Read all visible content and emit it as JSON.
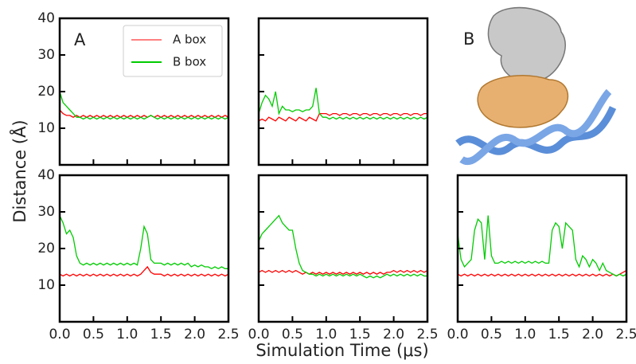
{
  "ylabel": "Distance (Å)",
  "xlabel": "Simulation Time (μs)",
  "image_label": "B",
  "chart_data": [
    {
      "type": "line",
      "annotation": "A",
      "legend": "upper right",
      "show_xticklabels": false,
      "show_yticklabels": true,
      "xlim": [
        0,
        2.5
      ],
      "ylim": [
        0,
        40
      ],
      "xticks": [
        0,
        0.5,
        1,
        1.5,
        2,
        2.5
      ],
      "yticks": [
        10,
        20,
        30,
        40
      ],
      "x": [
        0,
        0.05,
        0.1,
        0.15,
        0.2,
        0.25,
        0.3,
        0.35,
        0.4,
        0.45,
        0.5,
        0.55,
        0.6,
        0.65,
        0.7,
        0.75,
        0.8,
        0.85,
        0.9,
        0.95,
        1,
        1.05,
        1.1,
        1.15,
        1.2,
        1.25,
        1.3,
        1.35,
        1.4,
        1.45,
        1.5,
        1.55,
        1.6,
        1.65,
        1.7,
        1.75,
        1.8,
        1.85,
        1.9,
        1.95,
        2,
        2.05,
        2.1,
        2.15,
        2.2,
        2.25,
        2.3,
        2.35,
        2.4,
        2.45,
        2.5
      ],
      "series": [
        {
          "name": "A box",
          "color": "#ff0000",
          "values": [
            15,
            14,
            13.5,
            13.5,
            13,
            13.5,
            13,
            13.5,
            13,
            13.5,
            13,
            13.5,
            13,
            13.5,
            13,
            13.5,
            13,
            13.5,
            13,
            13.5,
            13,
            13.5,
            13,
            13.5,
            13,
            13.5,
            13,
            13.5,
            13,
            13.5,
            13,
            13.5,
            13,
            13.5,
            13,
            13.5,
            13,
            13.5,
            13,
            13.5,
            13,
            13.5,
            13,
            13.5,
            13,
            13.5,
            13,
            13.5,
            13,
            13.5,
            13
          ]
        },
        {
          "name": "B box",
          "color": "#00cc00",
          "values": [
            20,
            17,
            16,
            15,
            14,
            13,
            13,
            12.5,
            13,
            12.5,
            13,
            12.5,
            13,
            12.5,
            13,
            12.5,
            13,
            12.5,
            13,
            12.5,
            13,
            12.5,
            13,
            12.5,
            13,
            12.5,
            13,
            13.5,
            13,
            12.5,
            13,
            12.5,
            13,
            12.5,
            13,
            12.5,
            13,
            12.5,
            13,
            12.5,
            13,
            12.5,
            13,
            12.5,
            13,
            12.5,
            13,
            12.5,
            13,
            12.5,
            13
          ]
        }
      ]
    },
    {
      "type": "line",
      "show_xticklabels": false,
      "show_yticklabels": false,
      "xlim": [
        0,
        2.5
      ],
      "ylim": [
        0,
        40
      ],
      "xticks": [
        0,
        0.5,
        1,
        1.5,
        2,
        2.5
      ],
      "yticks": [
        10,
        20,
        30,
        40
      ],
      "x": [
        0,
        0.05,
        0.1,
        0.15,
        0.2,
        0.25,
        0.3,
        0.35,
        0.4,
        0.45,
        0.5,
        0.55,
        0.6,
        0.65,
        0.7,
        0.75,
        0.8,
        0.85,
        0.9,
        0.95,
        1,
        1.05,
        1.1,
        1.15,
        1.2,
        1.25,
        1.3,
        1.35,
        1.4,
        1.45,
        1.5,
        1.55,
        1.6,
        1.65,
        1.7,
        1.75,
        1.8,
        1.85,
        1.9,
        1.95,
        2,
        2.05,
        2.1,
        2.15,
        2.2,
        2.25,
        2.3,
        2.35,
        2.4,
        2.45,
        2.5
      ],
      "series": [
        {
          "color": "#ff0000",
          "values": [
            12,
            12.5,
            12,
            13,
            12.5,
            12,
            13,
            12.5,
            12,
            13,
            12.5,
            12,
            13,
            12.5,
            12,
            13,
            12.5,
            12,
            14,
            14,
            14,
            13.5,
            14,
            14,
            13.5,
            14,
            14,
            13.5,
            14,
            14,
            13.5,
            14,
            14,
            13.5,
            14,
            14,
            13.5,
            14,
            14,
            13.5,
            14,
            14,
            13.5,
            14,
            14,
            13.5,
            14,
            14,
            13.5,
            14,
            14
          ]
        },
        {
          "color": "#00cc00",
          "values": [
            14,
            17,
            19,
            18,
            16,
            20,
            14,
            16,
            15,
            15,
            14.5,
            15,
            15,
            14.5,
            15,
            15,
            16,
            21,
            14,
            13,
            13,
            12.5,
            13,
            12.5,
            13,
            12.5,
            13,
            12.5,
            13,
            12.5,
            13,
            12.5,
            13,
            12.5,
            13,
            12.5,
            13,
            12.5,
            13,
            12.5,
            13,
            12.5,
            13,
            12.5,
            13,
            12.5,
            13,
            12.5,
            13,
            12.5,
            13
          ]
        }
      ]
    },
    {
      "type": "line",
      "show_xticklabels": true,
      "show_yticklabels": true,
      "xlim": [
        0,
        2.5
      ],
      "ylim": [
        0,
        40
      ],
      "xticks": [
        {
          "value": 0,
          "label": "0.0"
        },
        0.5,
        {
          "value": 1,
          "label": "1.0"
        },
        1.5,
        {
          "value": 2,
          "label": "2.0"
        },
        2.5
      ],
      "yticks": [
        10,
        20,
        30,
        40
      ],
      "x": [
        0,
        0.05,
        0.1,
        0.15,
        0.2,
        0.25,
        0.3,
        0.35,
        0.4,
        0.45,
        0.5,
        0.55,
        0.6,
        0.65,
        0.7,
        0.75,
        0.8,
        0.85,
        0.9,
        0.95,
        1,
        1.05,
        1.1,
        1.15,
        1.2,
        1.25,
        1.3,
        1.35,
        1.4,
        1.45,
        1.5,
        1.55,
        1.6,
        1.65,
        1.7,
        1.75,
        1.8,
        1.85,
        1.9,
        1.95,
        2,
        2.05,
        2.1,
        2.15,
        2.2,
        2.25,
        2.3,
        2.35,
        2.4,
        2.45,
        2.5
      ],
      "series": [
        {
          "color": "#ff0000",
          "values": [
            13,
            12.5,
            13,
            12.5,
            13,
            12.5,
            13,
            12.5,
            13,
            12.5,
            13,
            12.5,
            13,
            12.5,
            13,
            12.5,
            13,
            12.5,
            13,
            12.5,
            13,
            12.5,
            13,
            12.5,
            13,
            14,
            15,
            13.5,
            13,
            13,
            13,
            12.5,
            13,
            12.5,
            13,
            12.5,
            13,
            12.5,
            13,
            12.5,
            13,
            12.5,
            13,
            12.5,
            13,
            12.5,
            13,
            12.5,
            13,
            12.5,
            13
          ]
        },
        {
          "color": "#00cc00",
          "values": [
            29,
            27,
            24,
            25,
            23,
            18,
            16,
            15.5,
            16,
            15.5,
            16,
            15.5,
            16,
            15.5,
            16,
            15.5,
            16,
            15.5,
            16,
            15.5,
            16,
            15.5,
            16,
            15.5,
            20,
            26,
            24,
            17,
            16,
            16,
            16,
            15.5,
            16,
            15.5,
            16,
            15.5,
            16,
            15.5,
            16,
            15,
            15.5,
            15,
            15.5,
            15,
            15,
            14.5,
            15,
            14.5,
            15,
            14.5,
            14.5
          ]
        }
      ]
    },
    {
      "type": "line",
      "show_xticklabels": true,
      "show_yticklabels": false,
      "xlim": [
        0,
        2.5
      ],
      "ylim": [
        0,
        40
      ],
      "xticks": [
        {
          "value": 0,
          "label": "0.0"
        },
        0.5,
        {
          "value": 1,
          "label": "1.0"
        },
        1.5,
        {
          "value": 2,
          "label": "2.0"
        },
        2.5
      ],
      "yticks": [
        10,
        20,
        30,
        40
      ],
      "x": [
        0,
        0.05,
        0.1,
        0.15,
        0.2,
        0.25,
        0.3,
        0.35,
        0.4,
        0.45,
        0.5,
        0.55,
        0.6,
        0.65,
        0.7,
        0.75,
        0.8,
        0.85,
        0.9,
        0.95,
        1,
        1.05,
        1.1,
        1.15,
        1.2,
        1.25,
        1.3,
        1.35,
        1.4,
        1.45,
        1.5,
        1.55,
        1.6,
        1.65,
        1.7,
        1.75,
        1.8,
        1.85,
        1.9,
        1.95,
        2,
        2.05,
        2.1,
        2.15,
        2.2,
        2.25,
        2.3,
        2.35,
        2.4,
        2.45,
        2.5
      ],
      "series": [
        {
          "color": "#ff0000",
          "values": [
            13.5,
            14,
            13.5,
            14,
            13.5,
            14,
            13.5,
            14,
            13.5,
            14,
            13.5,
            14,
            13.5,
            13,
            13.5,
            13,
            13.5,
            13,
            13.5,
            13,
            13.5,
            13,
            13.5,
            13,
            13.5,
            13,
            13.5,
            13,
            13.5,
            13,
            13.5,
            13,
            13.5,
            13,
            13.5,
            13,
            13.5,
            13,
            13.5,
            13.5,
            14,
            13.5,
            14,
            13.5,
            14,
            13.5,
            14,
            13.5,
            14,
            13.5,
            14
          ]
        },
        {
          "color": "#00cc00",
          "values": [
            22,
            24,
            25,
            26,
            27,
            28,
            29,
            27,
            26,
            25,
            25,
            20,
            16,
            14,
            13.5,
            13,
            13,
            12.5,
            13,
            12.5,
            13,
            12.5,
            13,
            12.5,
            13,
            12.5,
            13,
            12.5,
            13,
            12.5,
            13,
            12.5,
            12,
            12.5,
            12,
            12.5,
            12,
            12.5,
            13,
            12.5,
            13,
            12.5,
            13,
            12.5,
            13,
            12.5,
            13,
            12.5,
            13,
            12.5,
            12.5
          ]
        }
      ]
    },
    {
      "type": "line",
      "show_xticklabels": true,
      "show_yticklabels": false,
      "xlim": [
        0,
        2.5
      ],
      "ylim": [
        0,
        40
      ],
      "xticks": [
        {
          "value": 0,
          "label": "0.0"
        },
        0.5,
        {
          "value": 1,
          "label": "1.0"
        },
        1.5,
        {
          "value": 2,
          "label": "2.0"
        },
        2.5
      ],
      "yticks": [
        10,
        20,
        30,
        40
      ],
      "x": [
        0,
        0.05,
        0.1,
        0.15,
        0.2,
        0.25,
        0.3,
        0.35,
        0.4,
        0.45,
        0.5,
        0.55,
        0.6,
        0.65,
        0.7,
        0.75,
        0.8,
        0.85,
        0.9,
        0.95,
        1,
        1.05,
        1.1,
        1.15,
        1.2,
        1.25,
        1.3,
        1.35,
        1.4,
        1.45,
        1.5,
        1.55,
        1.6,
        1.65,
        1.7,
        1.75,
        1.8,
        1.85,
        1.9,
        1.95,
        2,
        2.05,
        2.1,
        2.15,
        2.2,
        2.25,
        2.3,
        2.35,
        2.4,
        2.45,
        2.5
      ],
      "series": [
        {
          "color": "#ff0000",
          "values": [
            13,
            12.5,
            13,
            12.5,
            13,
            12.5,
            13,
            12.5,
            13,
            12.5,
            13,
            12.5,
            13,
            12.5,
            13,
            12.5,
            13,
            12.5,
            13,
            12.5,
            13,
            12.5,
            13,
            12.5,
            13,
            12.5,
            13,
            12.5,
            13,
            12.5,
            13,
            12.5,
            13,
            12.5,
            13,
            12.5,
            13,
            12.5,
            13,
            12.5,
            13,
            12.5,
            13,
            12.5,
            13,
            12.5,
            13,
            12.5,
            13,
            13.5,
            14
          ]
        },
        {
          "color": "#00cc00",
          "values": [
            24,
            17,
            15,
            16,
            17,
            25,
            28,
            27,
            17,
            29,
            18,
            16,
            16,
            16.5,
            16,
            16.5,
            16,
            16.5,
            16,
            16.5,
            16,
            16.5,
            16,
            16.5,
            16,
            16.5,
            16,
            16,
            25,
            27,
            26,
            20,
            27,
            26,
            25,
            17,
            15,
            18,
            17,
            15,
            17,
            16,
            14,
            16,
            14,
            13.5,
            13,
            12.5,
            13,
            12.5,
            13
          ]
        }
      ]
    }
  ]
}
